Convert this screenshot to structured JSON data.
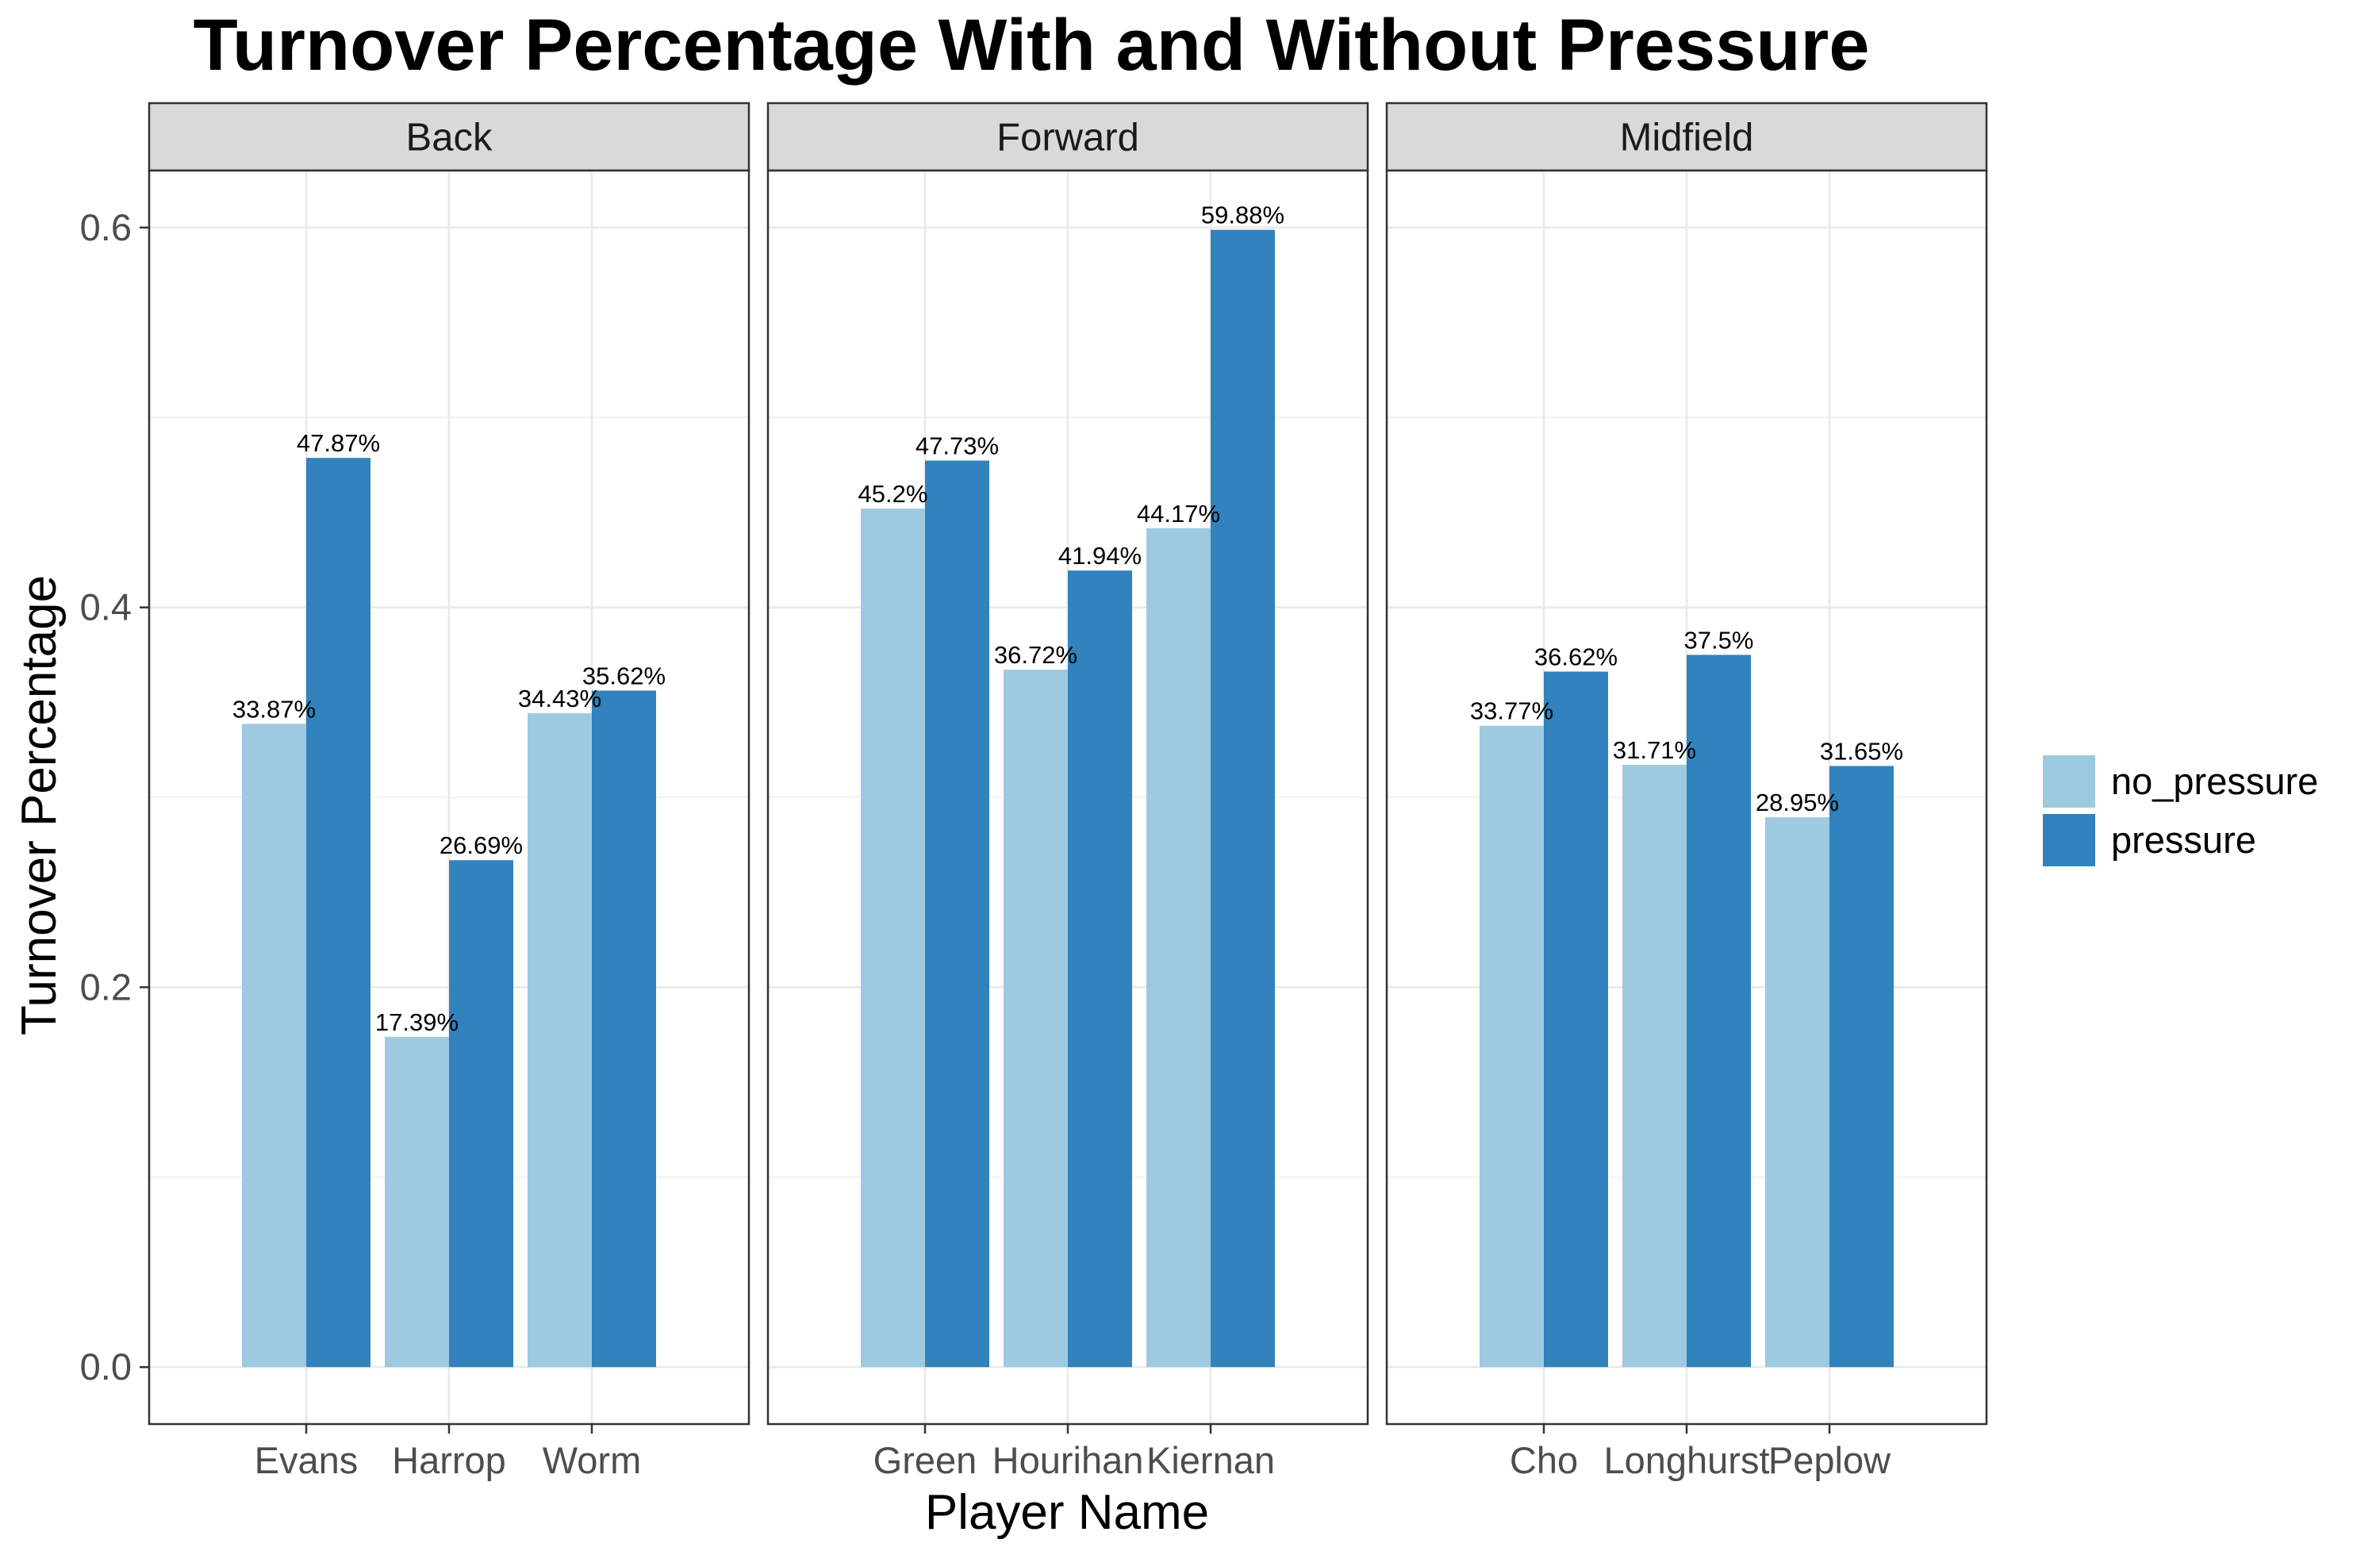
{
  "chart_data": {
    "type": "bar",
    "title": "Turnover Percentage With and Without Pressure",
    "xlabel": "Player Name",
    "ylabel": "Turnover Percentage",
    "ylim": [
      -0.03,
      0.63
    ],
    "yticks": [
      "0.0",
      "0.2",
      "0.4",
      "0.6"
    ],
    "ytick_values": [
      0,
      0.2,
      0.4,
      0.6
    ],
    "grid": true,
    "legend_position": "right",
    "series": [
      {
        "name": "no_pressure",
        "color": "#9ECAE1"
      },
      {
        "name": "pressure",
        "color": "#3182BD"
      }
    ],
    "facets": [
      {
        "label": "Back",
        "players": [
          {
            "name": "Evans",
            "no_pressure": 0.3387,
            "pressure": 0.4787,
            "no_pressure_label": "33.87%",
            "pressure_label": "47.87%"
          },
          {
            "name": "Harrop",
            "no_pressure": 0.1739,
            "pressure": 0.2669,
            "no_pressure_label": "17.39%",
            "pressure_label": "26.69%"
          },
          {
            "name": "Worm",
            "no_pressure": 0.3443,
            "pressure": 0.3562,
            "no_pressure_label": "34.43%",
            "pressure_label": "35.62%"
          }
        ]
      },
      {
        "label": "Forward",
        "players": [
          {
            "name": "Green",
            "no_pressure": 0.452,
            "pressure": 0.4773,
            "no_pressure_label": "45.2%",
            "pressure_label": "47.73%"
          },
          {
            "name": "Hourihan",
            "no_pressure": 0.3672,
            "pressure": 0.4194,
            "no_pressure_label": "36.72%",
            "pressure_label": "41.94%"
          },
          {
            "name": "Kiernan",
            "no_pressure": 0.4417,
            "pressure": 0.5988,
            "no_pressure_label": "44.17%",
            "pressure_label": "59.88%"
          }
        ]
      },
      {
        "label": "Midfield",
        "players": [
          {
            "name": "Cho",
            "no_pressure": 0.3377,
            "pressure": 0.3662,
            "no_pressure_label": "33.77%",
            "pressure_label": "36.62%"
          },
          {
            "name": "Longhurst",
            "no_pressure": 0.3171,
            "pressure": 0.375,
            "no_pressure_label": "31.71%",
            "pressure_label": "37.5%"
          },
          {
            "name": "Peplow",
            "no_pressure": 0.2895,
            "pressure": 0.3165,
            "no_pressure_label": "28.95%",
            "pressure_label": "31.65%"
          }
        ]
      }
    ]
  }
}
